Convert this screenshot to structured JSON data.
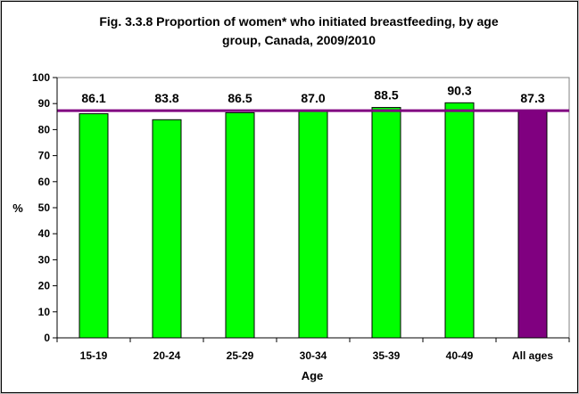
{
  "chart_data": {
    "type": "bar",
    "title_lines": [
      "Fig. 3.3.8 Proportion of women* who initiated breastfeeding, by age",
      "group, Canada, 2009/2010"
    ],
    "xlabel": "Age",
    "ylabel": "%",
    "categories": [
      "15-19",
      "20-24",
      "25-29",
      "30-34",
      "35-39",
      "40-49",
      "All ages"
    ],
    "values": [
      86.1,
      83.8,
      86.5,
      87.0,
      88.5,
      90.3,
      87.3
    ],
    "value_labels": [
      "86.1",
      "83.8",
      "86.5",
      "87.0",
      "88.5",
      "90.3",
      "87.3"
    ],
    "bar_colors": [
      "#00ff00",
      "#00ff00",
      "#00ff00",
      "#00ff00",
      "#00ff00",
      "#00ff00",
      "#800080"
    ],
    "reference_line": {
      "value": 87.3,
      "color": "#800080"
    },
    "ylim": [
      0,
      100
    ],
    "yticks": [
      0,
      10,
      20,
      30,
      40,
      50,
      60,
      70,
      80,
      90,
      100
    ],
    "grid": false,
    "plot_background": "#ffffff"
  }
}
